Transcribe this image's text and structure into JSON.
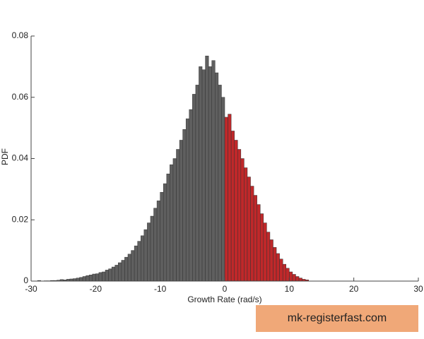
{
  "chart_data": {
    "type": "histogram",
    "xlabel": "Growth Rate (rad/s)",
    "ylabel": "PDF",
    "xlim": [
      -30,
      30
    ],
    "xticks": [
      -30,
      -20,
      -10,
      0,
      10,
      20,
      30
    ],
    "ylim": [
      0,
      0.08
    ],
    "yticks": [
      0,
      0.02,
      0.04,
      0.06,
      0.08
    ],
    "series": [
      {
        "color": "#5f5f5f",
        "bins": [
          -29,
          -28.5,
          -28,
          -27.5,
          -27,
          -26.5,
          -26,
          -25.5,
          -25,
          -24.5,
          -24,
          -23.5,
          -23,
          -22.5,
          -22,
          -21.5,
          -21,
          -20.5,
          -20,
          -19.5,
          -19,
          -18.5,
          -18,
          -17.5,
          -17,
          -16.5,
          -16,
          -15.5,
          -15,
          -14.5,
          -14,
          -13.5,
          -13,
          -12.5,
          -12,
          -11.5,
          -11,
          -10.5,
          -10,
          -9.5,
          -9,
          -8.5,
          -8,
          -7.5,
          -7,
          -6.5,
          -6,
          -5.5,
          -5,
          -4.5,
          -4,
          -3.5,
          -3,
          -2.5,
          -2,
          -1.5,
          -1,
          -0.5,
          0
        ],
        "values": [
          0.0002,
          0,
          0.0001,
          0.0001,
          0.0002,
          0.0002,
          0.0003,
          0.0005,
          0.0004,
          0.0006,
          0.0007,
          0.0008,
          0.001,
          0.0012,
          0.0015,
          0.0018,
          0.002,
          0.0023,
          0.0024,
          0.0028,
          0.003,
          0.0036,
          0.004,
          0.0046,
          0.0052,
          0.006,
          0.0068,
          0.0078,
          0.0088,
          0.01,
          0.0115,
          0.013,
          0.0148,
          0.0168,
          0.019,
          0.0212,
          0.0238,
          0.0262,
          0.029,
          0.0318,
          0.035,
          0.038,
          0.04,
          0.043,
          0.046,
          0.0495,
          0.053,
          0.056,
          0.061,
          0.064,
          0.07,
          0.069,
          0.0735,
          0.07,
          0.072,
          0.068,
          0.064,
          0.06
        ]
      },
      {
        "color": "#c0282a",
        "bins": [
          0,
          0.5,
          1,
          1.5,
          2,
          2.5,
          3,
          3.5,
          4,
          4.5,
          5,
          5.5,
          6,
          6.5,
          7,
          7.5,
          8,
          8.5,
          9,
          9.5,
          10,
          10.5,
          11,
          11.5,
          12,
          12.5,
          13
        ],
        "values": [
          0.0535,
          0.0545,
          0.049,
          0.046,
          0.043,
          0.04,
          0.037,
          0.034,
          0.031,
          0.028,
          0.025,
          0.022,
          0.019,
          0.016,
          0.0135,
          0.011,
          0.009,
          0.0072,
          0.0055,
          0.0042,
          0.003,
          0.0022,
          0.0015,
          0.001,
          0.0006,
          0.0004
        ]
      }
    ],
    "watermark": "mk-registerfast.com"
  }
}
